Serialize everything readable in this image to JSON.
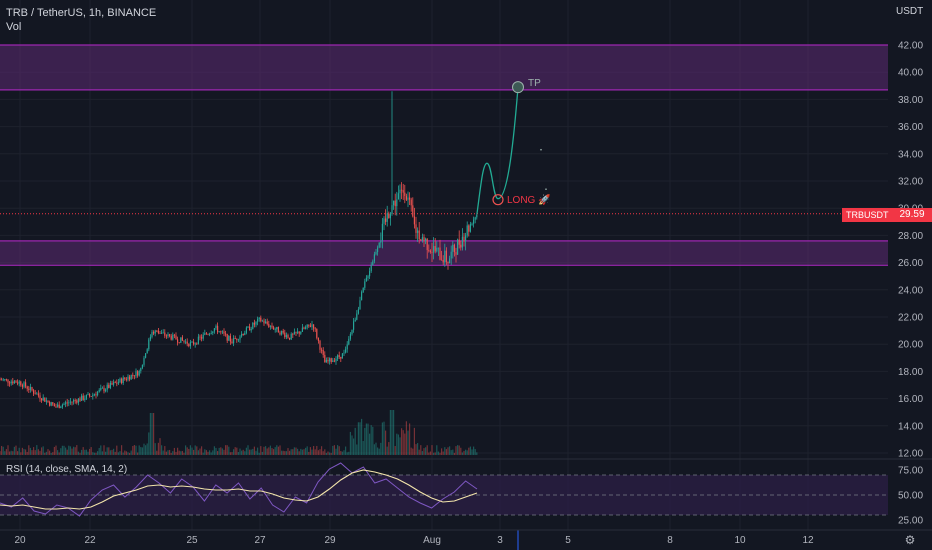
{
  "header": {
    "title": "TRB / TetherUS, 1h, BINANCE",
    "volume_label": "Vol"
  },
  "price_axis": {
    "unit": "USDT",
    "symbol_badge": "TRBUSDT",
    "current_price": "29.59"
  },
  "rsi_indicator": {
    "label": "RSI (14, close, SMA, 14, 2)"
  },
  "annotations": {
    "take_profit": "TP",
    "entry": "LONG 🚀"
  },
  "colors": {
    "background": "#131722",
    "grid": "#1e222d",
    "candle_up": "#26a69a",
    "candle_down": "#ef5350",
    "zone_fill": "#5c2a73",
    "zone_border": "#9c27b0",
    "projection": "#22ab94",
    "rsi_line": "#7e57c2",
    "rsi_ma": "#f3e5ab",
    "rsi_band": "#2a1e44",
    "current_price_line": "#f23645"
  },
  "chart_data": [
    {
      "type": "candlestick",
      "title": "TRB / TetherUS, 1h, BINANCE",
      "x_ticks": [
        "20",
        "22",
        "25",
        "27",
        "29",
        "Aug",
        "3",
        "5",
        "8",
        "10",
        "12"
      ],
      "y_ticks": [
        "12.00",
        "14.00",
        "16.00",
        "18.00",
        "20.00",
        "22.00",
        "24.00",
        "26.00",
        "28.00",
        "30.00",
        "32.00",
        "34.00",
        "36.00",
        "38.00",
        "40.00",
        "42.00"
      ],
      "ylim": [
        11.8,
        43.5
      ],
      "current_price": 29.59,
      "resistance_zone": [
        38.7,
        42.0
      ],
      "support_zone": [
        25.8,
        27.6
      ],
      "close_path": [
        {
          "x": "Jul 19",
          "y": 17.4
        },
        {
          "x": "Jul 20",
          "y": 17.2
        },
        {
          "x": "Jul 21",
          "y": 15.4
        },
        {
          "x": "Jul 22",
          "y": 16.2
        },
        {
          "x": "Jul 23",
          "y": 17.0
        },
        {
          "x": "Jul 24",
          "y": 18.0
        },
        {
          "x": "Jul 24 12h",
          "y": 21.0
        },
        {
          "x": "Jul 25",
          "y": 20.0
        },
        {
          "x": "Jul 26",
          "y": 21.2
        },
        {
          "x": "Jul 26 12h",
          "y": 20.2
        },
        {
          "x": "Jul 27",
          "y": 21.8
        },
        {
          "x": "Jul 28",
          "y": 20.5
        },
        {
          "x": "Jul 28 12h",
          "y": 21.5
        },
        {
          "x": "Jul 29",
          "y": 18.6
        },
        {
          "x": "Jul 29 12h",
          "y": 19.3
        },
        {
          "x": "Jul 30",
          "y": 24.5
        },
        {
          "x": "Jul 30 12h",
          "y": 30.0
        },
        {
          "x": "Jul 31",
          "y": 31.5
        },
        {
          "x": "Jul 31 6h",
          "y": 28.5
        },
        {
          "x": "Aug 1",
          "y": 27.0
        },
        {
          "x": "Aug 1 12h",
          "y": 26.2
        },
        {
          "x": "Aug 2",
          "y": 28.2
        },
        {
          "x": "Aug 2 6h",
          "y": 29.6
        }
      ],
      "spike_high": 38.6,
      "projection": [
        {
          "x": "Aug 2 6h",
          "y": 29.6
        },
        {
          "x": "Aug 2 12h",
          "y": 33.3
        },
        {
          "x": "Aug 2 18h",
          "y": 30.7
        },
        {
          "x": "Aug 3 6h",
          "y": 38.9
        }
      ],
      "take_profit": 38.9,
      "entry": 30.7
    },
    {
      "type": "line",
      "title": "RSI (14, close, SMA, 14, 2)",
      "y_ticks": [
        "25.00",
        "50.00",
        "75.00"
      ],
      "ylim": [
        22,
        85
      ],
      "upper_band": 70,
      "middle_band": 50,
      "lower_band": 30,
      "series": [
        {
          "name": "RSI",
          "values": [
            42,
            38,
            47,
            34,
            31,
            40,
            37,
            29,
            45,
            55,
            60,
            48,
            58,
            70,
            62,
            52,
            66,
            58,
            44,
            60,
            52,
            62,
            46,
            57,
            40,
            33,
            48,
            42,
            63,
            76,
            82,
            72,
            78,
            62,
            66,
            57,
            48,
            42,
            37,
            46,
            53,
            64,
            56
          ]
        },
        {
          "name": "RSI-based MA",
          "values": [
            40,
            39,
            40,
            38,
            36,
            36,
            37,
            36,
            38,
            43,
            49,
            52,
            55,
            59,
            60,
            58,
            59,
            58,
            56,
            55,
            55,
            56,
            54,
            54,
            51,
            47,
            45,
            44,
            48,
            56,
            65,
            72,
            75,
            73,
            70,
            66,
            60,
            53,
            47,
            43,
            44,
            48,
            52
          ]
        }
      ]
    }
  ]
}
